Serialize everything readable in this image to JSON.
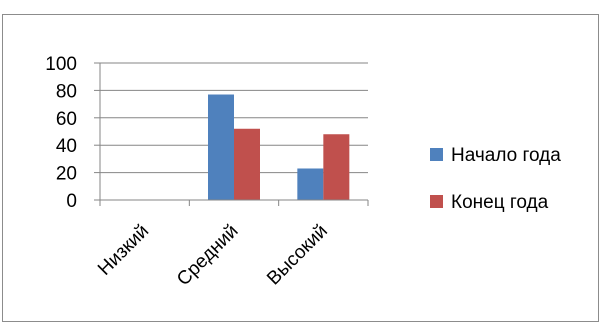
{
  "chart_data": {
    "type": "bar",
    "categories": [
      "Низкий",
      "Средний",
      "Высокий"
    ],
    "series": [
      {
        "name": "Начало года",
        "values": [
          0,
          77,
          23
        ],
        "color": "#4F81BD"
      },
      {
        "name": "Конец года",
        "values": [
          0,
          52,
          48
        ],
        "color": "#C0504D"
      }
    ],
    "y_ticks": [
      "0",
      "20",
      "40",
      "60",
      "80",
      "100"
    ],
    "ylim": [
      0,
      100
    ],
    "grid": true,
    "legend_position": "right",
    "colors": {
      "grid": "#868686",
      "axis": "#868686",
      "frame": "#8c8c8c"
    }
  }
}
